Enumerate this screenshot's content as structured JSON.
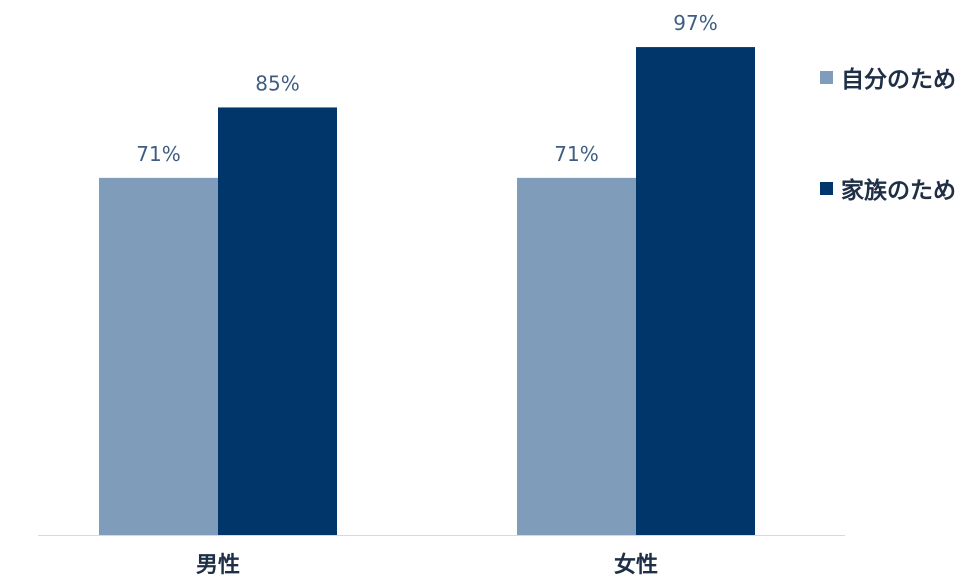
{
  "chart_data": {
    "type": "bar",
    "categories": [
      "男性",
      "女性"
    ],
    "series": [
      {
        "name": "自分のため",
        "values": [
          71,
          71
        ],
        "labels": [
          "71%",
          "71%"
        ],
        "color": "#7f9cbb"
      },
      {
        "name": "家族のため",
        "values": [
          85,
          97
        ],
        "labels": [
          "85%",
          "97%"
        ],
        "color": "#00366a"
      }
    ],
    "ylim": [
      0,
      100
    ],
    "grid": false,
    "legend_position": "right",
    "label_color": "#3f5e82"
  }
}
